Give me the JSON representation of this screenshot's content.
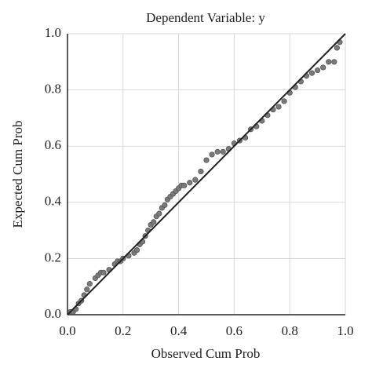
{
  "chart_data": {
    "type": "scatter",
    "title": "Dependent Variable: y",
    "x_label": "Observed Cum Prob",
    "y_label": "Expected Cum Prob",
    "xlim": [
      0,
      1
    ],
    "ylim": [
      0,
      1
    ],
    "xticks": [
      {
        "value": 0,
        "label": "0.0"
      },
      0.2,
      0.4,
      0.6,
      0.8,
      {
        "value": 1,
        "label": "1.0"
      }
    ],
    "yticks": [
      {
        "value": 0,
        "label": "0.0"
      },
      0.2,
      0.4,
      0.6,
      0.8,
      {
        "value": 1,
        "label": "1.0"
      }
    ],
    "grid": true,
    "series": [
      {
        "color": "#7a7a7a",
        "x": [
          0.01,
          0.02,
          0.03,
          0.04,
          0.05,
          0.06,
          0.07,
          0.08,
          0.1,
          0.11,
          0.12,
          0.13,
          0.15,
          0.17,
          0.18,
          0.19,
          0.2,
          0.22,
          0.24,
          0.25,
          0.26,
          0.27,
          0.28,
          0.29,
          0.3,
          0.31,
          0.32,
          0.33,
          0.34,
          0.35,
          0.36,
          0.37,
          0.38,
          0.39,
          0.4,
          0.41,
          0.42,
          0.44,
          0.46,
          0.48,
          0.5,
          0.52,
          0.54,
          0.56,
          0.58,
          0.6,
          0.62,
          0.64,
          0.66,
          0.68,
          0.7,
          0.72,
          0.74,
          0.76,
          0.78,
          0.8,
          0.82,
          0.84,
          0.86,
          0.88,
          0.9,
          0.92,
          0.94,
          0.96,
          0.97,
          0.98
        ],
        "values": [
          0.01,
          0.01,
          0.02,
          0.04,
          0.05,
          0.07,
          0.09,
          0.11,
          0.13,
          0.14,
          0.15,
          0.15,
          0.16,
          0.18,
          0.19,
          0.19,
          0.2,
          0.21,
          0.22,
          0.23,
          0.25,
          0.26,
          0.28,
          0.3,
          0.32,
          0.33,
          0.35,
          0.36,
          0.38,
          0.39,
          0.41,
          0.42,
          0.43,
          0.44,
          0.45,
          0.46,
          0.46,
          0.47,
          0.48,
          0.51,
          0.55,
          0.57,
          0.58,
          0.58,
          0.59,
          0.61,
          0.62,
          0.63,
          0.66,
          0.67,
          0.69,
          0.71,
          0.73,
          0.74,
          0.76,
          0.79,
          0.81,
          0.83,
          0.85,
          0.86,
          0.87,
          0.88,
          0.9,
          0.9,
          0.95,
          0.97
        ]
      }
    ],
    "reference_line": {
      "color": "#222222",
      "x": [
        0,
        1
      ],
      "values": [
        0,
        1
      ]
    }
  }
}
